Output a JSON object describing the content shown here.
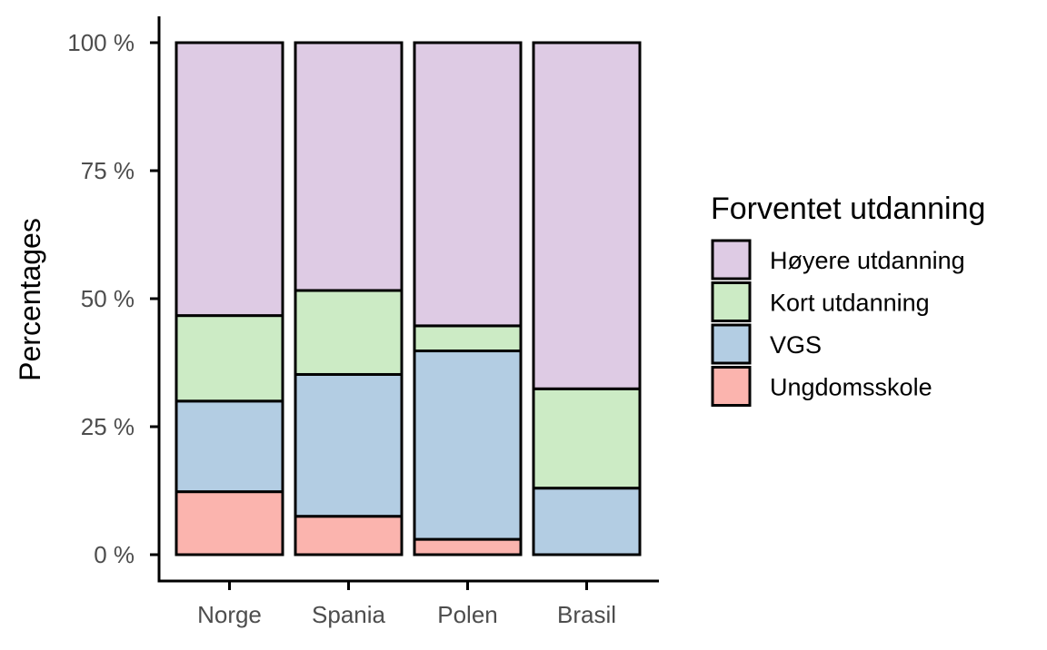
{
  "chart_data": {
    "type": "bar",
    "stacked": true,
    "normalized": true,
    "categories": [
      "Norge",
      "Spania",
      "Polen",
      "Brasil"
    ],
    "series": [
      {
        "name": "Ungdomsskole",
        "color": "#FBB4AE",
        "values": [
          12.3,
          7.5,
          3.0,
          0.0
        ]
      },
      {
        "name": "VGS",
        "color": "#B3CDE3",
        "values": [
          17.7,
          27.7,
          36.8,
          13.0
        ]
      },
      {
        "name": "Kort utdanning",
        "color": "#CCEBC5",
        "values": [
          16.7,
          16.4,
          4.9,
          19.4
        ]
      },
      {
        "name": "Høyere utdanning",
        "color": "#DECBE4",
        "values": [
          53.3,
          48.4,
          55.3,
          67.6
        ]
      }
    ],
    "ylabel": "Percentages",
    "xlabel": "",
    "ylim": [
      0,
      100
    ],
    "yticks": [
      0,
      25,
      50,
      75,
      100
    ],
    "ytick_labels": [
      "0 %",
      "25 %",
      "50 %",
      "75 %",
      "100 %"
    ],
    "legend": {
      "title": "Forventet utdanning",
      "position": "right",
      "order": [
        "Høyere utdanning",
        "Kort utdanning",
        "VGS",
        "Ungdomsskole"
      ]
    },
    "grid": false,
    "bar_outline_color": "#000000"
  }
}
